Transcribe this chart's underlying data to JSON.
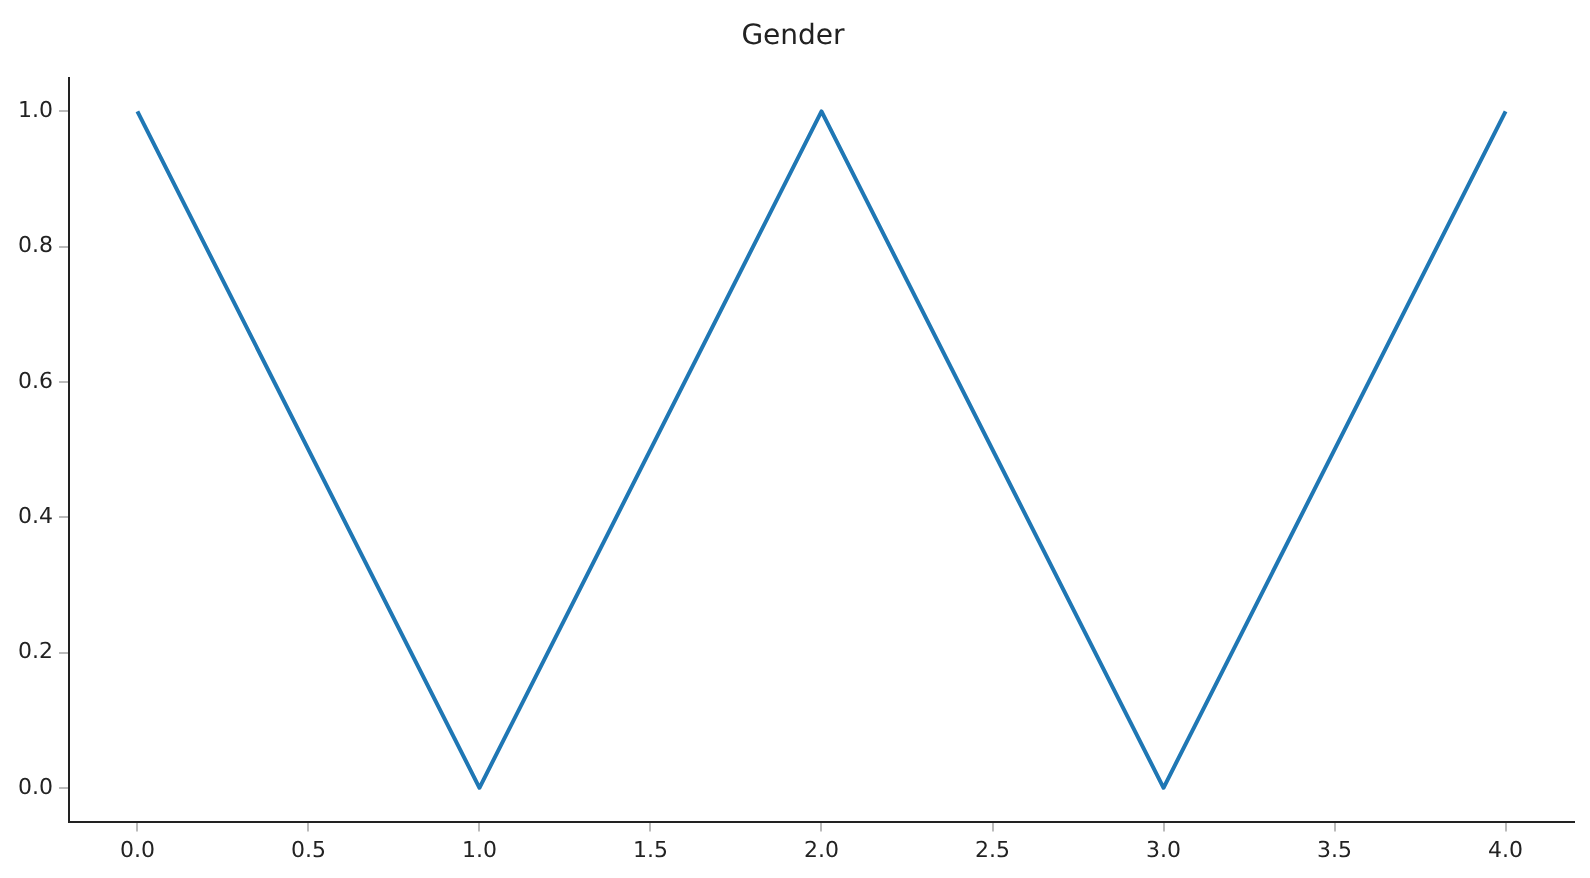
{
  "chart_data": {
    "type": "line",
    "title": "Gender",
    "x": [
      0,
      1,
      2,
      3,
      4
    ],
    "series": [
      {
        "color": "#1f77b4",
        "values": [
          1,
          0,
          1,
          0,
          1
        ]
      }
    ],
    "xlim": [
      -0.2,
      4.2
    ],
    "ylim": [
      -0.05,
      1.05
    ],
    "xticks": [
      {
        "value": 0,
        "label": "0.0"
      },
      {
        "value": 0.5,
        "label": "0.5"
      },
      {
        "value": 1,
        "label": "1.0"
      },
      {
        "value": 1.5,
        "label": "1.5"
      },
      {
        "value": 2,
        "label": "2.0"
      },
      {
        "value": 2.5,
        "label": "2.5"
      },
      {
        "value": 3,
        "label": "3.0"
      },
      {
        "value": 3.5,
        "label": "3.5"
      },
      {
        "value": 4,
        "label": "4.0"
      }
    ],
    "yticks": [
      {
        "value": 0,
        "label": "0.0"
      },
      {
        "value": 0.2,
        "label": "0.2"
      },
      {
        "value": 0.4,
        "label": "0.4"
      },
      {
        "value": 0.6,
        "label": "0.6"
      },
      {
        "value": 0.8,
        "label": "0.8"
      },
      {
        "value": 1,
        "label": "1.0"
      }
    ],
    "marker": "none",
    "line_style": "solid",
    "legend": false
  }
}
